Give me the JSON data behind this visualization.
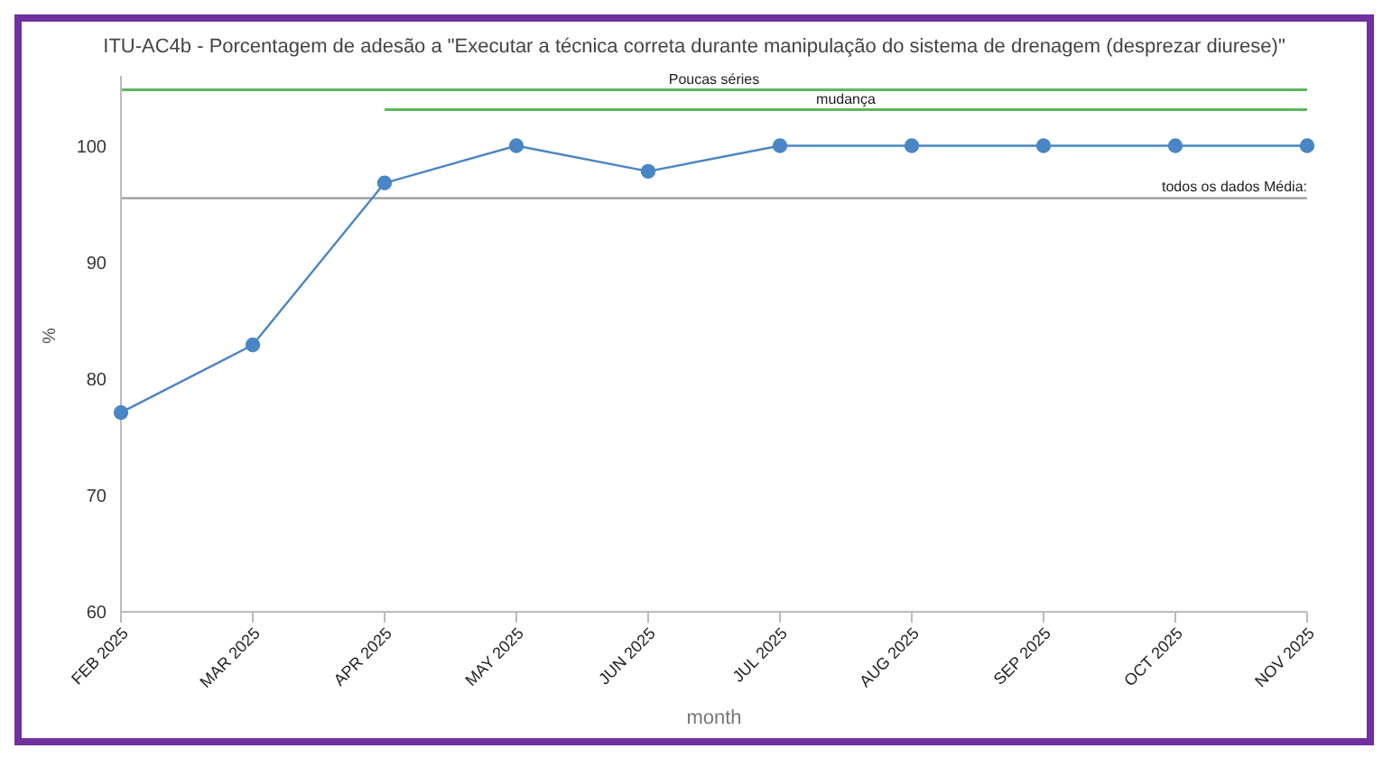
{
  "chart_data": {
    "type": "line",
    "title": "ITU-AC4b - Porcentagem de adesão a \"Executar a técnica correta durante manipulação do sistema de drenagem (desprezar diurese)\"",
    "categories": [
      "FEB 2025",
      "MAR 2025",
      "APR 2025",
      "MAY 2025",
      "JUN 2025",
      "JUL 2025",
      "AUG 2025",
      "SEP 2025",
      "OCT 2025",
      "NOV 2025"
    ],
    "series": [
      {
        "color": "#4a86c5",
        "values": [
          77.1,
          82.9,
          96.8,
          100,
          97.8,
          100,
          100,
          100,
          100,
          100
        ],
        "marker": "circle"
      },
      {
        "name": "Poucas séries",
        "color": "#5cb85c",
        "values": [
          104.8,
          104.8,
          104.8,
          104.8,
          104.8,
          104.8,
          104.8,
          104.8,
          104.8,
          104.8
        ],
        "marker": "none"
      },
      {
        "name": "mudança",
        "color": "#5cb85c",
        "values": [
          null,
          null,
          103.1,
          103.1,
          103.1,
          103.1,
          103.1,
          103.1,
          103.1,
          103.1
        ],
        "marker": "none"
      }
    ],
    "ylim": [
      60,
      106
    ],
    "yticks": [
      60,
      70,
      80,
      90,
      100
    ],
    "xlabel": "month",
    "ylabel": "%",
    "ref_lines": [
      {
        "axis": "y",
        "value": 95.5,
        "label": "todos os dados Média:",
        "color": "#999999"
      }
    ],
    "grid": false,
    "legend": false,
    "line_style": "solid"
  }
}
